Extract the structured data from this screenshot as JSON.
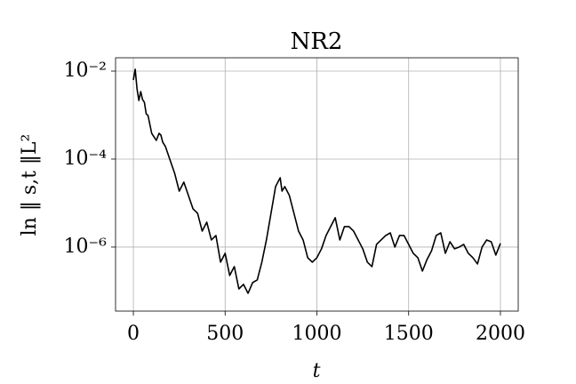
{
  "chart_data": {
    "type": "line",
    "title": "NR2",
    "xlabel": "t",
    "ylabel": "ln ‖ s,t ‖L²",
    "yscale": "log",
    "grid": true,
    "color": "#000000",
    "xlim": [
      -97,
      2097
    ],
    "xticks": [
      0,
      500,
      1000,
      1500,
      2000
    ],
    "ylim": [
      3.5e-08,
      0.0201
    ],
    "yticks": [
      {
        "value": 0.01,
        "label": "10⁻²"
      },
      {
        "value": 0.0001,
        "label": "10⁻⁴"
      },
      {
        "value": 1e-06,
        "label": "10⁻⁶"
      }
    ],
    "x": [
      0,
      10,
      20,
      30,
      40,
      50,
      60,
      70,
      80,
      100,
      125,
      140,
      150,
      160,
      175,
      200,
      225,
      250,
      275,
      300,
      325,
      350,
      375,
      400,
      425,
      450,
      475,
      500,
      525,
      550,
      575,
      600,
      625,
      650,
      675,
      700,
      725,
      750,
      775,
      800,
      810,
      825,
      850,
      875,
      900,
      925,
      950,
      975,
      1000,
      1025,
      1050,
      1075,
      1100,
      1125,
      1150,
      1175,
      1200,
      1225,
      1250,
      1275,
      1300,
      1325,
      1350,
      1375,
      1400,
      1425,
      1450,
      1475,
      1500,
      1525,
      1550,
      1575,
      1600,
      1625,
      1650,
      1675,
      1700,
      1725,
      1750,
      1775,
      1800,
      1825,
      1850,
      1875,
      1900,
      1925,
      1950,
      1975,
      2000
    ],
    "values": [
      0.00628,
      0.011,
      0.00395,
      0.00215,
      0.00343,
      0.00226,
      0.00196,
      0.00107,
      0.000977,
      0.000385,
      0.000266,
      0.000385,
      0.000351,
      0.000242,
      0.000192,
      9.55e-05,
      4.75e-05,
      1.87e-05,
      2.99e-05,
      1.49e-05,
      7.4e-06,
      5.86e-06,
      2.31e-06,
      3.68e-06,
      1.45e-06,
      1.83e-06,
      4.54e-07,
      7.22e-07,
      2.26e-07,
      3.6e-07,
      1.12e-07,
      1.42e-07,
      8.89e-08,
      1.56e-07,
      1.79e-07,
      4.54e-07,
      1.45e-06,
      5.86e-06,
      2.37e-05,
      3.77e-05,
      1.87e-05,
      2.37e-05,
      1.49e-05,
      5.86e-06,
      2.31e-06,
      1.45e-06,
      5.73e-07,
      4.54e-07,
      5.73e-07,
      9.12e-07,
      1.83e-06,
      2.92e-06,
      4.65e-06,
      1.45e-06,
      2.92e-06,
      2.92e-06,
      2.31e-06,
      1.45e-06,
      9.12e-07,
      4.54e-07,
      3.6e-07,
      1.15e-06,
      1.45e-06,
      1.83e-06,
      2.1e-06,
      1e-06,
      1.83e-06,
      1.83e-06,
      1.15e-06,
      7.22e-07,
      5.73e-07,
      2.85e-07,
      5.21e-07,
      8.3e-07,
      1.83e-06,
      2.1e-06,
      7.22e-07,
      1.32e-06,
      9.12e-07,
      1e-06,
      1.15e-06,
      7.22e-07,
      5.73e-07,
      4.13e-07,
      1e-06,
      1.45e-06,
      1.32e-06,
      6.58e-07,
      1.21e-06
    ]
  }
}
